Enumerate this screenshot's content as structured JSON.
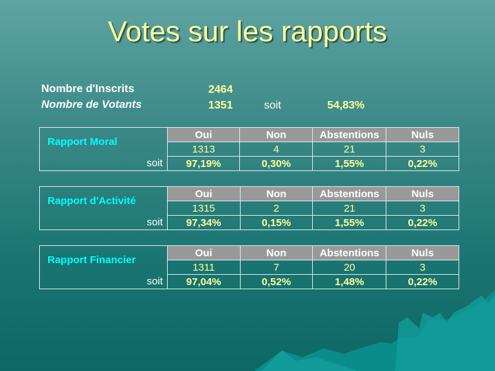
{
  "title": "Votes sur les rapports",
  "inscrits": {
    "label": "Nombre d'Inscrits",
    "value": "2464"
  },
  "votants": {
    "label": "Nombre de Votants",
    "value": "1351",
    "soit": "soit",
    "pct": "54,83%"
  },
  "headers": [
    "Oui",
    "Non",
    "Abstentions",
    "Nuls"
  ],
  "soit_label": "soit",
  "reports": [
    {
      "name": "Rapport Moral",
      "counts": [
        "1313",
        "4",
        "21",
        "3"
      ],
      "pcts": [
        "97,19%",
        "0,30%",
        "1,55%",
        "0,22%"
      ]
    },
    {
      "name": "Rapport d'Activité",
      "counts": [
        "1315",
        "2",
        "21",
        "3"
      ],
      "pcts": [
        "97,34%",
        "0,15%",
        "1,55%",
        "0,22%"
      ]
    },
    {
      "name": "Rapport Financier",
      "counts": [
        "1311",
        "7",
        "20",
        "3"
      ],
      "pcts": [
        "97,04%",
        "0,52%",
        "1,48%",
        "0,22%"
      ]
    }
  ]
}
